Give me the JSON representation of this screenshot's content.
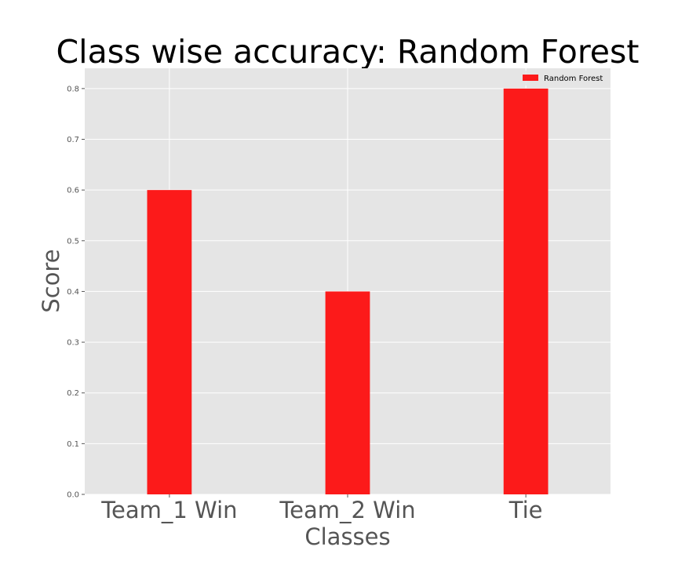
{
  "chart_data": {
    "type": "bar",
    "title": "Class wise accuracy: Random Forest",
    "xlabel": "Classes",
    "ylabel": "Score",
    "categories": [
      "Team_1 Win",
      "Team_2 Win",
      "Tie"
    ],
    "series": [
      {
        "name": "Random Forest",
        "values": [
          0.6,
          0.4,
          0.8
        ],
        "color": "#fc1a1a"
      }
    ],
    "ylim": [
      0,
      0.84
    ],
    "yticks": [
      "0.0",
      "0.1",
      "0.2",
      "0.3",
      "0.4",
      "0.5",
      "0.6",
      "0.7",
      "0.8"
    ],
    "grid": true,
    "legend_position": "top-right",
    "background_color": "#e5e5e5",
    "grid_color": "#ffffff"
  }
}
